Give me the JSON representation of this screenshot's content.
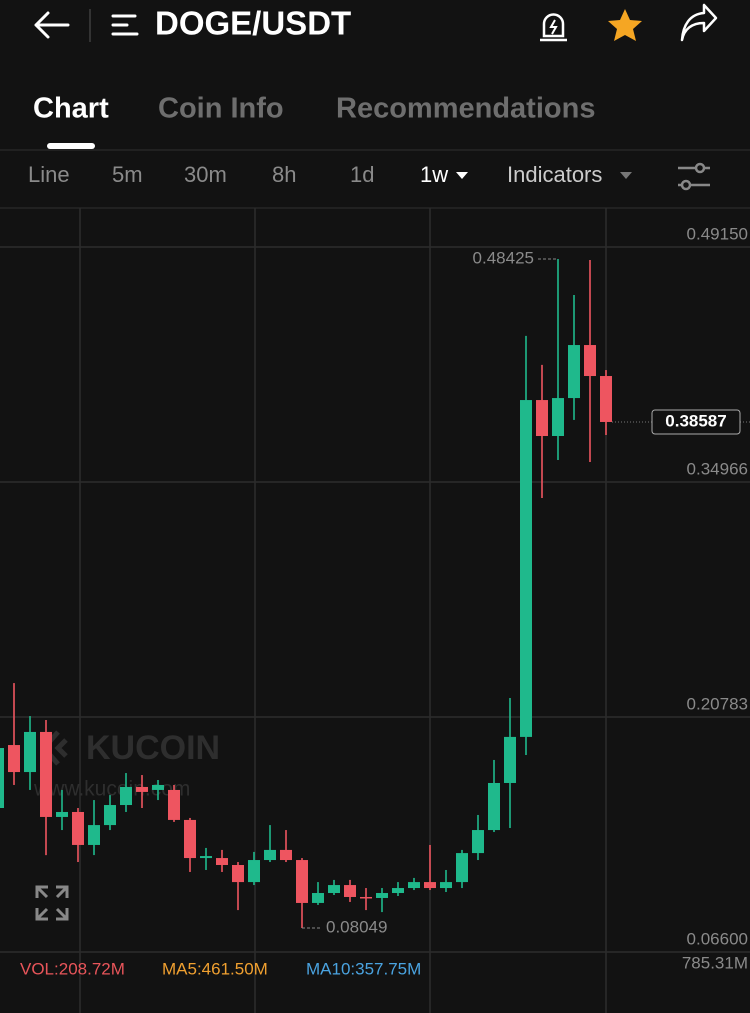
{
  "header": {
    "title": "DOGE/USDT"
  },
  "tabs": [
    "Chart",
    "Coin Info",
    "Recommendations"
  ],
  "toolbar": {
    "intervals": [
      "Line",
      "5m",
      "30m",
      "8h",
      "1d",
      "1w"
    ],
    "indicators": "Indicators"
  },
  "chart_data": {
    "type": "candlestick",
    "categories": [
      null,
      null,
      null,
      null,
      null,
      null,
      null,
      null,
      null,
      null,
      null,
      null,
      null,
      null,
      null,
      null,
      null,
      null,
      null,
      null,
      null,
      null,
      null,
      null,
      null,
      null,
      null,
      null,
      null,
      null,
      null,
      null,
      null,
      null,
      null,
      null,
      null,
      null,
      null
    ],
    "open": [
      0.1529,
      0.1909,
      0.1746,
      0.1988,
      0.1475,
      0.1505,
      0.1306,
      0.1426,
      0.1547,
      0.1656,
      0.1638,
      0.1638,
      0.1457,
      0.1227,
      0.1227,
      0.1185,
      0.1082,
      0.1215,
      0.1276,
      0.1215,
      0.0956,
      0.1016,
      0.1064,
      0.0992,
      0.0986,
      0.1016,
      0.1046,
      0.1082,
      0.1046,
      0.1082,
      0.1257,
      0.1396,
      0.168,
      0.1958,
      0.3991,
      0.3774,
      0.4003,
      0.4323,
      0.4136
    ],
    "high": [
      0.1939,
      0.2283,
      0.2084,
      0.206,
      0.1638,
      0.1529,
      0.1577,
      0.1607,
      0.174,
      0.1728,
      0.1698,
      0.1668,
      0.1469,
      0.1288,
      0.1276,
      0.1203,
      0.1264,
      0.1426,
      0.1396,
      0.1227,
      0.1082,
      0.1095,
      0.1095,
      0.1046,
      0.1046,
      0.1082,
      0.1107,
      0.1306,
      0.1155,
      0.1276,
      0.1487,
      0.1819,
      0.2193,
      0.4378,
      0.4203,
      0.48425,
      0.4625,
      0.4836,
      0.4172
    ],
    "low": [
      0.1505,
      0.1668,
      0.1638,
      0.1245,
      0.1396,
      0.1203,
      0.1245,
      0.1396,
      0.1505,
      0.1529,
      0.1577,
      0.1445,
      0.1143,
      0.1155,
      0.1143,
      0.0913,
      0.1064,
      0.1203,
      0.1203,
      0.08049,
      0.0944,
      0.1004,
      0.0962,
      0.0913,
      0.0901,
      0.0998,
      0.1034,
      0.1034,
      0.1022,
      0.1046,
      0.1215,
      0.1384,
      0.1408,
      0.1849,
      0.34,
      0.3629,
      0.3871,
      0.3617,
      0.378
    ],
    "close": [
      0.1891,
      0.1746,
      0.1988,
      0.1475,
      0.1505,
      0.1306,
      0.1426,
      0.1547,
      0.1656,
      0.1626,
      0.1668,
      0.1457,
      0.1227,
      0.1239,
      0.1185,
      0.1082,
      0.1215,
      0.1276,
      0.1215,
      0.0956,
      0.1016,
      0.1064,
      0.0992,
      0.0986,
      0.1016,
      0.1046,
      0.1082,
      0.1046,
      0.1082,
      0.1257,
      0.1396,
      0.168,
      0.1958,
      0.3991,
      0.3774,
      0.4003,
      0.4323,
      0.4136,
      0.38587
    ],
    "up_color": "#1fb98c",
    "down_color": "#ee5560",
    "ylim": [
      0.066,
      0.515
    ],
    "yticks": [
      {
        "value": 0.4915,
        "label": "0.49150"
      },
      0.34966,
      0.20783,
      {
        "value": 0.066,
        "label": "0.06600"
      }
    ],
    "grid": true,
    "watermark": [
      "KUCOIN",
      "www.kucoin.com"
    ],
    "volume_legend": [
      "VOL:208.72M",
      "MA5:461.50M",
      "MA10:357.75M"
    ],
    "volume_axis_label": "785.31M"
  }
}
